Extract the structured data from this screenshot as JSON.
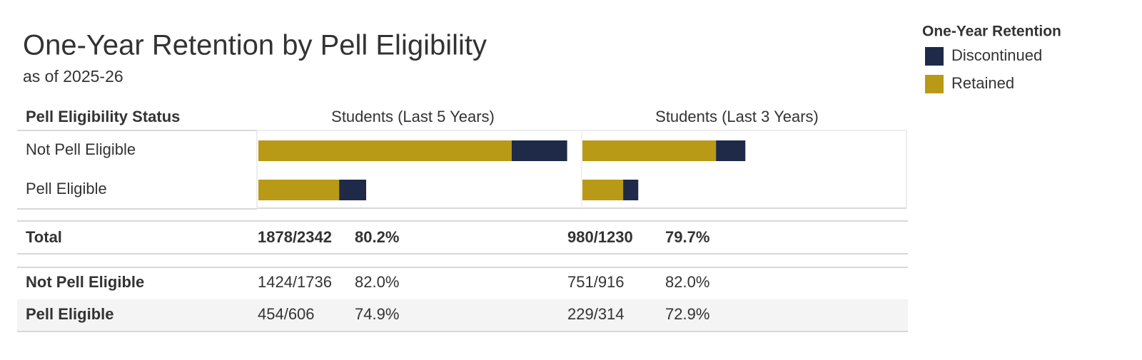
{
  "chart_data": {
    "type": "bar",
    "orientation": "horizontal",
    "stacked": true,
    "title": "One-Year Retention by Pell Eligibility",
    "subtitle": "as of 2025-26",
    "row_header": "Pell Eligibility Status",
    "legend_title": "One-Year Retention",
    "categories": [
      "Not Pell Eligible",
      "Pell Eligible"
    ],
    "panels": [
      {
        "title": "Students (Last 5 Years)",
        "series": [
          {
            "name": "Discontinued",
            "color": "#1f2a48",
            "values": [
              312,
              152
            ]
          },
          {
            "name": "Retained",
            "color": "#b89a17",
            "values": [
              1424,
              454
            ]
          }
        ]
      },
      {
        "title": "Students (Last 3 Years)",
        "series": [
          {
            "name": "Discontinued",
            "color": "#1f2a48",
            "values": [
              165,
              85
            ]
          },
          {
            "name": "Retained",
            "color": "#b89a17",
            "values": [
              751,
              229
            ]
          }
        ]
      }
    ]
  },
  "table": {
    "rows": [
      [
        "Total",
        "1878/2342",
        "80.2%",
        "980/1230",
        "79.7%"
      ],
      [
        "Not Pell Eligible",
        "1424/1736",
        "82.0%",
        "751/916",
        "82.0%"
      ],
      [
        "Pell Eligible",
        "454/606",
        "74.9%",
        "229/314",
        "72.9%"
      ]
    ]
  }
}
